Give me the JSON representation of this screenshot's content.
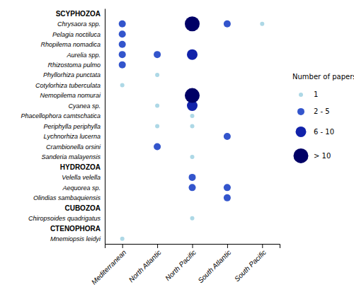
{
  "chart_data": {
    "type": "scatter",
    "categories": [
      "SCYPHOZOA",
      "Chrysaora spp.",
      "Pelagia noctiluca",
      "Rhopilema nomadica",
      "Aurelia spp.",
      "Rhizostoma pulmo",
      "Phyllorhiza punctata",
      "Cotylorhiza tuberculata",
      "Nemopilema nomurai",
      "Cyanea sp.",
      "Phacellophora camtschatica",
      "Periphylla periphylla",
      "Lychnorhiza lucerna",
      "Crambionella orsini",
      "Sanderia malayensis",
      "HYDROZOA",
      "Velella velella",
      "Aequorea  sp.",
      "Olindias sambaquiensis",
      "CUBOZOA",
      "Chiropsoides quadrigatus",
      "CTENOPHORA",
      "Mnemiopsis leidyi"
    ],
    "x": [
      "Mediterranean",
      "North Atlantic",
      "North Pacific",
      "South Atlantic",
      "South Pacific"
    ],
    "legend_title": "Number of papers",
    "legend": "right",
    "series": [
      {
        "name": "1",
        "color": "#add8e6",
        "x": [
          "South Pacific",
          "North Atlantic",
          "Mediterranean",
          "North Atlantic",
          "North Pacific",
          "North Atlantic",
          "North Pacific",
          "North Pacific",
          "North Pacific",
          "Mediterranean"
        ],
        "y": [
          "Chrysaora spp.",
          "Phyllorhiza punctata",
          "Cotylorhiza tuberculata",
          "Cyanea sp.",
          "Phacellophora camtschatica",
          "Periphylla periphylla",
          "Periphylla periphylla",
          "Sanderia malayensis",
          "Chiropsoides quadrigatus",
          "Mnemiopsis leidyi"
        ]
      },
      {
        "name": "2 - 5",
        "color": "#3355cc",
        "x": [
          "Mediterranean",
          "South Atlantic",
          "Mediterranean",
          "Mediterranean",
          "Mediterranean",
          "North Atlantic",
          "Mediterranean",
          "South Atlantic",
          "North Atlantic",
          "North Pacific",
          "North Pacific",
          "South Atlantic",
          "South Atlantic"
        ],
        "y": [
          "Chrysaora spp.",
          "Chrysaora spp.",
          "Pelagia noctiluca",
          "Rhopilema nomadica",
          "Aurelia spp.",
          "Aurelia spp.",
          "Rhizostoma pulmo",
          "Lychnorhiza lucerna",
          "Crambionella orsini",
          "Velella velella",
          "Aequorea  sp.",
          "Aequorea  sp.",
          "Olindias sambaquiensis"
        ]
      },
      {
        "name": "6 - 10",
        "color": "#1122aa",
        "x": [
          "North Pacific",
          "North Pacific"
        ],
        "y": [
          "Aurelia spp.",
          "Cyanea sp."
        ]
      },
      {
        "name": "> 10",
        "color": "#000066",
        "x": [
          "North Pacific",
          "North Pacific"
        ],
        "y": [
          "Chrysaora spp.",
          "Nemopilema nomurai"
        ]
      }
    ]
  }
}
